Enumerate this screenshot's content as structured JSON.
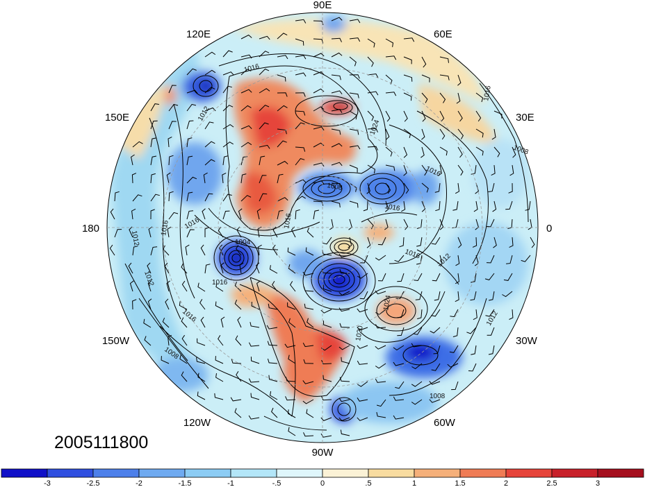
{
  "map": {
    "projection": "north polar stereographic",
    "date_stamp": "2005111800",
    "longitude_labels": [
      "90E",
      "60E",
      "30E",
      "0",
      "30W",
      "60W",
      "90W",
      "120W",
      "150W",
      "180",
      "150E",
      "120E"
    ],
    "isobar_labels": [
      "1016",
      "1016",
      "1012",
      "1024",
      "1008",
      "1016",
      "1016",
      "1012",
      "1016",
      "1016",
      "1004",
      "1016",
      "1016",
      "1012",
      "1016",
      "1008",
      "1012",
      "1020",
      "1024",
      "1016",
      "1012",
      "1008",
      "1008"
    ],
    "contour_color": "#000000",
    "shading": "anomaly",
    "wind_barbs": true
  },
  "colorbar": {
    "tick_labels": [
      "-3",
      "-2.5",
      "-2",
      "-1.5",
      "-1",
      "-.5",
      "0",
      ".5",
      "1",
      "1.5",
      "2",
      "2.5",
      "3"
    ],
    "colors": [
      "#1010c8",
      "#2f4fe0",
      "#4d80ea",
      "#6faaf0",
      "#8cccf4",
      "#b3e6f8",
      "#dff6fb",
      "#fbf2d6",
      "#f8dca0",
      "#f5b07a",
      "#ef7c55",
      "#e6443a",
      "#c8202a",
      "#a50f1e"
    ]
  }
}
